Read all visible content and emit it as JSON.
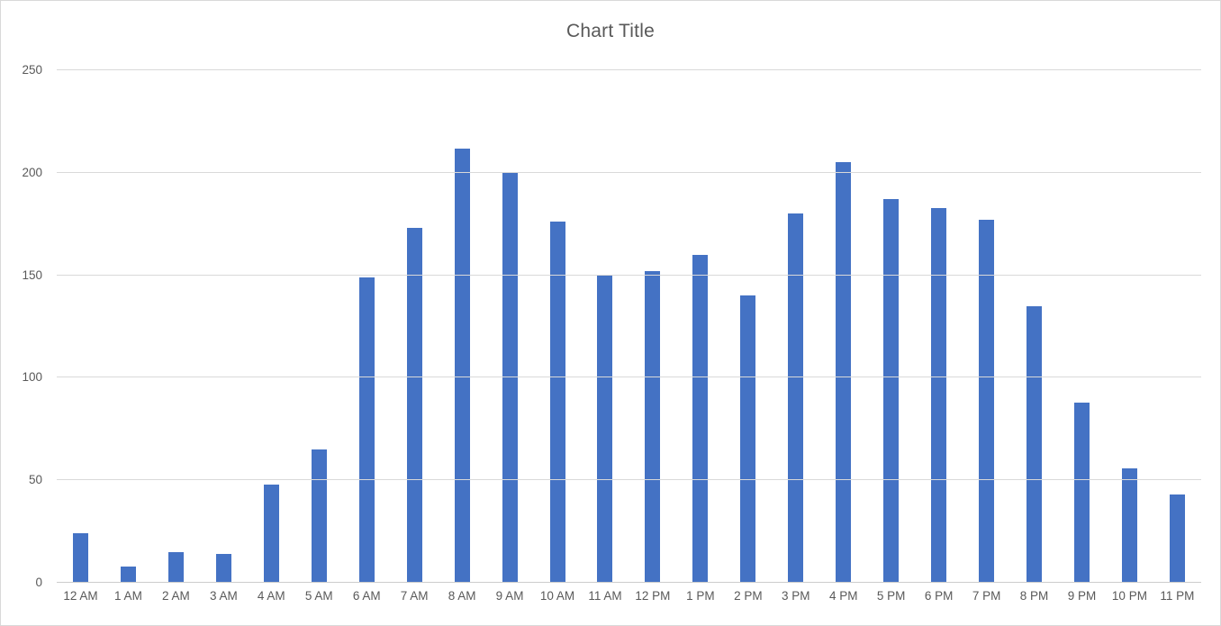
{
  "window": {
    "background": "#FFFFFF",
    "border_color": "#D9D9D9"
  },
  "chart_data": {
    "type": "bar",
    "title": "Chart Title",
    "categories": [
      "12 AM",
      "1 AM",
      "2 AM",
      "3 AM",
      "4 AM",
      "5 AM",
      "6 AM",
      "7 AM",
      "8 AM",
      "9 AM",
      "10 AM",
      "11 AM",
      "12 PM",
      "1 PM",
      "2 PM",
      "3 PM",
      "4 PM",
      "5 PM",
      "6 PM",
      "7 PM",
      "8 PM",
      "9 PM",
      "10 PM",
      "11 PM"
    ],
    "values": [
      24,
      8,
      15,
      14,
      48,
      65,
      149,
      173,
      212,
      200,
      176,
      150,
      152,
      160,
      140,
      180,
      205,
      187,
      183,
      177,
      135,
      88,
      56,
      43
    ],
    "xlabel": "",
    "ylabel": "",
    "ylim": [
      0,
      250
    ],
    "y_ticks": [
      0,
      50,
      100,
      150,
      200,
      250
    ],
    "grid": true,
    "legend": false,
    "colors": {
      "bar": "#4472C4",
      "gridline": "#D9D9D9",
      "axis_line": "#CDCDCD",
      "text": "#595959",
      "border": "#D9D9D9",
      "background": "#FFFFFF"
    }
  }
}
